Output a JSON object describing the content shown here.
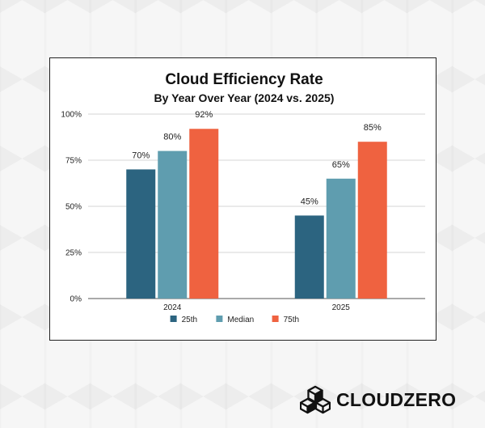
{
  "chart_data": {
    "type": "bar",
    "title": "Cloud Efficiency Rate",
    "subtitle": "By Year Over Year (2024 vs. 2025)",
    "categories": [
      "2024",
      "2025"
    ],
    "series": [
      {
        "name": "25th",
        "color": "#2c6480",
        "values": [
          70,
          45
        ],
        "labels": [
          "70%",
          "45%"
        ]
      },
      {
        "name": "Median",
        "color": "#5f9daf",
        "values": [
          80,
          65
        ],
        "labels": [
          "80%",
          "65%"
        ]
      },
      {
        "name": "75th",
        "color": "#ef6240",
        "values": [
          92,
          85
        ],
        "labels": [
          "92%",
          "85%"
        ]
      }
    ],
    "ylim": [
      0,
      100
    ],
    "yticks": [
      0,
      25,
      50,
      75,
      100
    ],
    "ytick_labels": [
      "0%",
      "25%",
      "50%",
      "75%",
      "100%"
    ],
    "xlabel": "",
    "ylabel": "",
    "grid": true,
    "legend": "bottom-center"
  },
  "brand": {
    "name": "CLOUDZERO",
    "logo_icon": "cube-cluster-icon"
  }
}
